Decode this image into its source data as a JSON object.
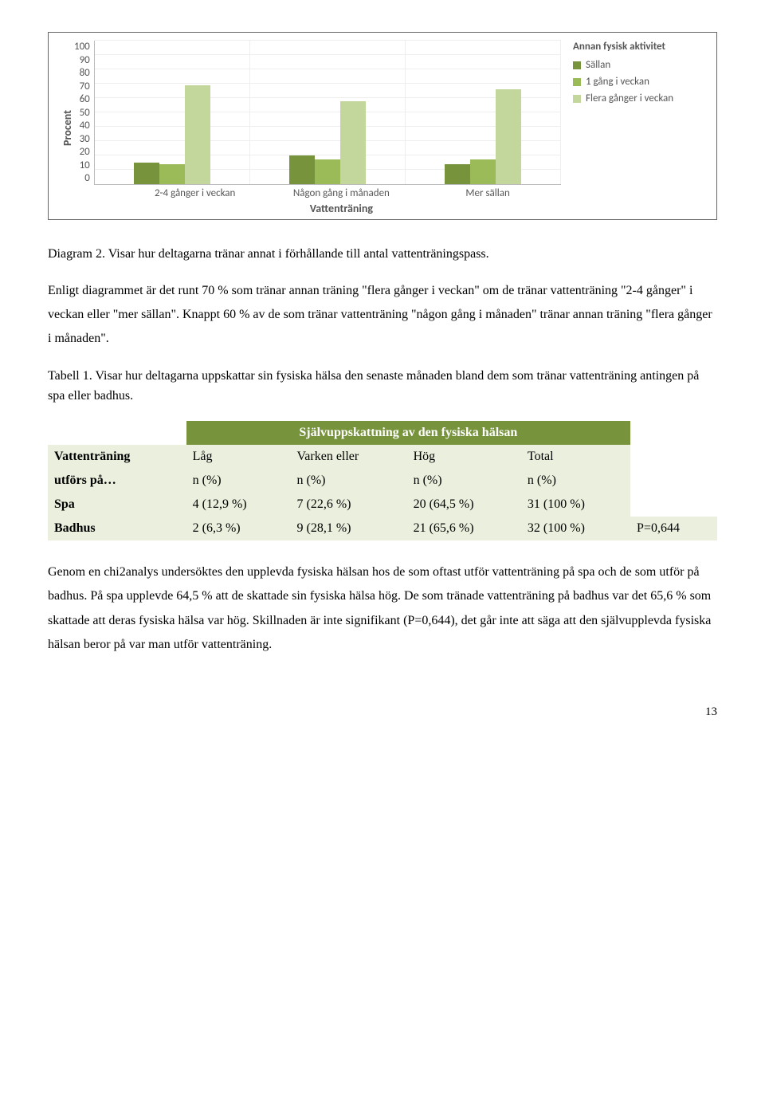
{
  "chart": {
    "type": "bar",
    "yaxis_label": "Procent",
    "ylim_max": 100,
    "yticks": [
      100,
      90,
      80,
      70,
      60,
      50,
      40,
      30,
      20,
      10,
      0
    ],
    "categories": [
      "2-4 gånger i veckan",
      "Någon gång i månaden",
      "Mer sällan"
    ],
    "xaxis_title": "Vattenträning",
    "series": [
      {
        "label": "Sällan",
        "color": "#77933c",
        "values": [
          15,
          20,
          14
        ]
      },
      {
        "label": "1 gång i veckan",
        "color": "#9bbb59",
        "values": [
          14,
          17,
          17
        ]
      },
      {
        "label": "Flera gånger i veckan",
        "color": "#c3d69b",
        "values": [
          69,
          58,
          66
        ]
      }
    ],
    "gridline_color": "#eeeeee",
    "legend_title": "Annan fysisk aktivitet",
    "tick_font": 13
  },
  "caption1": "Diagram 2. Visar hur deltagarna tränar annat i förhållande till antal vattenträningspass.",
  "para1": "Enligt diagrammet är det runt 70 % som tränar annan träning \"flera gånger i veckan\" om de tränar vattenträning \"2-4 gånger\" i veckan eller \"mer sällan\". Knappt 60 % av de som tränar vattenträning \"någon gång i månaden\" tränar annan träning \"flera gånger i månaden\".",
  "caption2": "Tabell 1. Visar hur deltagarna uppskattar sin fysiska hälsa den senaste månaden bland dem som tränar vattenträning antingen på spa eller badhus.",
  "table": {
    "header_title": "Självuppskattning av den fysiska hälsan",
    "header_bg": "#77933c",
    "row_bg": "#eaf0dd",
    "col0_top": "Vattenträning",
    "col0_bottom": "utförs på…",
    "cols": [
      {
        "top": "Låg",
        "bottom": "n (%)"
      },
      {
        "top": "Varken eller",
        "bottom": "n (%)"
      },
      {
        "top": "Hög",
        "bottom": "n (%)"
      },
      {
        "top": "Total",
        "bottom": "n (%)"
      }
    ],
    "rows": [
      {
        "label": "Spa",
        "cells": [
          "4 (12,9 %)",
          "7 (22,6 %)",
          "20 (64,5 %)",
          "31 (100 %)"
        ],
        "extra": ""
      },
      {
        "label": "Badhus",
        "cells": [
          "2 (6,3 %)",
          "9 (28,1 %)",
          "21 (65,6 %)",
          "32 (100 %)"
        ],
        "extra": "P=0,644"
      }
    ]
  },
  "para2": "Genom en chi2analys undersöktes den upplevda fysiska hälsan hos de som oftast utför vattenträning på spa och de som utför på badhus. På spa upplevde 64,5 % att de skattade sin fysiska hälsa hög. De som tränade vattenträning på badhus var det 65,6 % som skattade att deras fysiska hälsa var hög. Skillnaden är inte signifikant (P=0,644), det går inte att säga att den självupplevda fysiska hälsan beror på var man utför vattenträning.",
  "page_number": "13"
}
